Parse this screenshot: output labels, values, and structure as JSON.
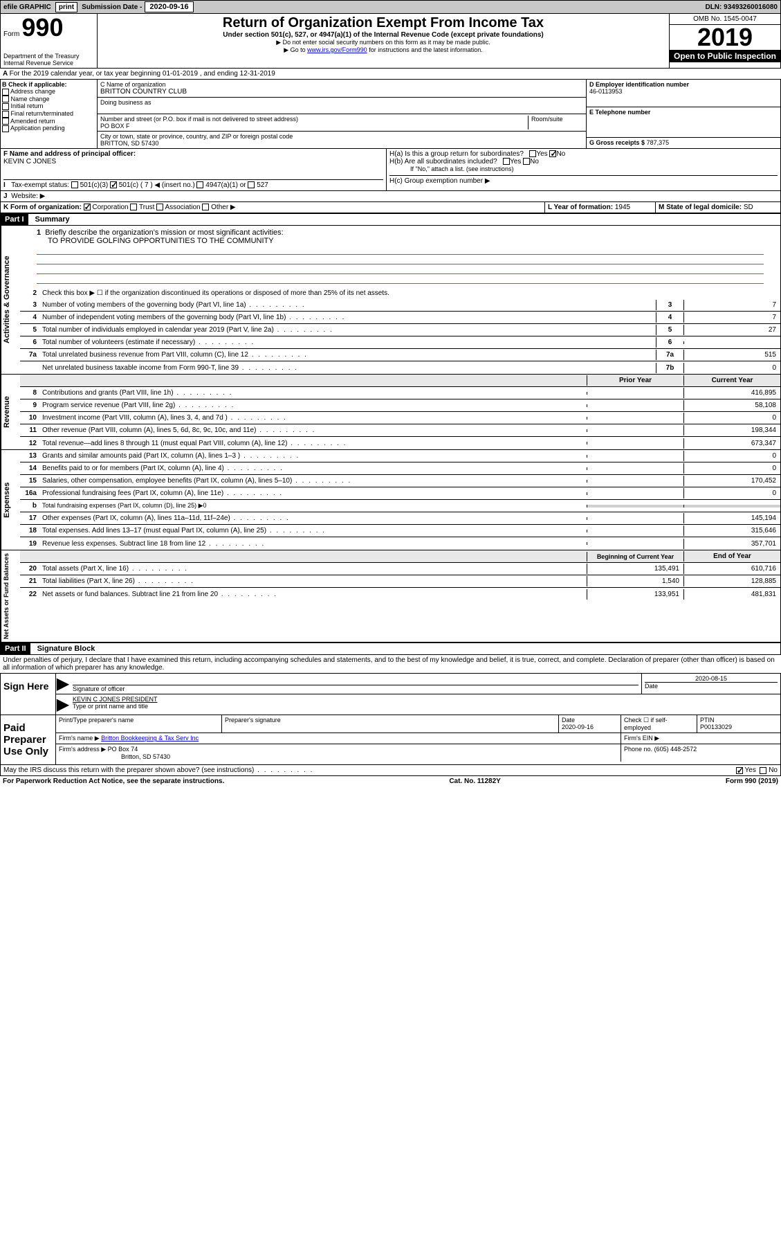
{
  "topbar": {
    "efile": "efile GRAPHIC",
    "print": "print",
    "sub_label": "Submission Date - ",
    "sub_date": "2020-09-16",
    "dln": "DLN: 93493260016080"
  },
  "header": {
    "form_prefix": "Form",
    "form_num": "990",
    "title": "Return of Organization Exempt From Income Tax",
    "subtitle": "Under section 501(c), 527, or 4947(a)(1) of the Internal Revenue Code (except private foundations)",
    "note1": "▶ Do not enter social security numbers on this form as it may be made public.",
    "note2_pre": "▶ Go to ",
    "note2_link": "www.irs.gov/Form990",
    "note2_post": " for instructions and the latest information.",
    "omb": "OMB No. 1545-0047",
    "year": "2019",
    "open": "Open to Public Inspection",
    "dept1": "Department of the Treasury",
    "dept2": "Internal Revenue Service"
  },
  "period": {
    "text": "For the 2019 calendar year, or tax year beginning 01-01-2019   , and ending 12-31-2019"
  },
  "boxB": {
    "title": "B Check if applicable:",
    "opts": [
      "Address change",
      "Name change",
      "Initial return",
      "Final return/terminated",
      "Amended return",
      "Application pending"
    ]
  },
  "boxC": {
    "label": "C Name of organization",
    "name": "BRITTON COUNTRY CLUB",
    "dba": "Doing business as",
    "addr_label": "Number and street (or P.O. box if mail is not delivered to street address)",
    "room": "Room/suite",
    "addr": "PO BOX F",
    "city_label": "City or town, state or province, country, and ZIP or foreign postal code",
    "city": "BRITTON, SD  57430"
  },
  "boxD": {
    "label": "D Employer identification number",
    "val": "46-0113953"
  },
  "boxE": {
    "label": "E Telephone number"
  },
  "boxG": {
    "label": "G Gross receipts $",
    "val": "787,375"
  },
  "boxF": {
    "label": "F  Name and address of principal officer:",
    "val": "KEVIN C JONES"
  },
  "boxH": {
    "a": "H(a)  Is this a group return for subordinates?",
    "b": "H(b)  Are all subordinates included?",
    "b_note": "If \"No,\" attach a list. (see instructions)",
    "c": "H(c)  Group exemption number ▶",
    "yes": "Yes",
    "no": "No"
  },
  "boxI": {
    "label": "Tax-exempt status:",
    "c3": "501(c)(3)",
    "c": "501(c) ( 7 ) ◀ (insert no.)",
    "a1": "4947(a)(1) or",
    "527": "527"
  },
  "boxJ": {
    "label": "Website: ▶"
  },
  "boxK": {
    "label": "K Form of organization:",
    "corp": "Corporation",
    "trust": "Trust",
    "assoc": "Association",
    "other": "Other ▶"
  },
  "boxL": {
    "label": "L Year of formation:",
    "val": "1945"
  },
  "boxM": {
    "label": "M State of legal domicile:",
    "val": "SD"
  },
  "part1": {
    "label": "Part I",
    "title": "Summary"
  },
  "summary": {
    "q1": "Briefly describe the organization's mission or most significant activities:",
    "q1_val": "TO PROVIDE GOLFING OPPORTUNITIES TO THE COMMUNITY",
    "q2": "Check this box ▶ ☐  if the organization discontinued its operations or disposed of more than 25% of its net assets.",
    "rows_gov": [
      {
        "n": "3",
        "t": "Number of voting members of the governing body (Part VI, line 1a)",
        "b": "3",
        "v": "7"
      },
      {
        "n": "4",
        "t": "Number of independent voting members of the governing body (Part VI, line 1b)",
        "b": "4",
        "v": "7"
      },
      {
        "n": "5",
        "t": "Total number of individuals employed in calendar year 2019 (Part V, line 2a)",
        "b": "5",
        "v": "27"
      },
      {
        "n": "6",
        "t": "Total number of volunteers (estimate if necessary)",
        "b": "6",
        "v": ""
      },
      {
        "n": "7a",
        "t": "Total unrelated business revenue from Part VIII, column (C), line 12",
        "b": "7a",
        "v": "515"
      },
      {
        "n": "",
        "t": "Net unrelated business taxable income from Form 990-T, line 39",
        "b": "7b",
        "v": "0"
      }
    ],
    "hdr_prior": "Prior Year",
    "hdr_current": "Current Year",
    "rows_rev": [
      {
        "n": "8",
        "t": "Contributions and grants (Part VIII, line 1h)",
        "p": "",
        "c": "416,895"
      },
      {
        "n": "9",
        "t": "Program service revenue (Part VIII, line 2g)",
        "p": "",
        "c": "58,108"
      },
      {
        "n": "10",
        "t": "Investment income (Part VIII, column (A), lines 3, 4, and 7d )",
        "p": "",
        "c": "0"
      },
      {
        "n": "11",
        "t": "Other revenue (Part VIII, column (A), lines 5, 6d, 8c, 9c, 10c, and 11e)",
        "p": "",
        "c": "198,344"
      },
      {
        "n": "12",
        "t": "Total revenue—add lines 8 through 11 (must equal Part VIII, column (A), line 12)",
        "p": "",
        "c": "673,347"
      }
    ],
    "rows_exp": [
      {
        "n": "13",
        "t": "Grants and similar amounts paid (Part IX, column (A), lines 1–3 )",
        "p": "",
        "c": "0"
      },
      {
        "n": "14",
        "t": "Benefits paid to or for members (Part IX, column (A), line 4)",
        "p": "",
        "c": "0"
      },
      {
        "n": "15",
        "t": "Salaries, other compensation, employee benefits (Part IX, column (A), lines 5–10)",
        "p": "",
        "c": "170,452"
      },
      {
        "n": "16a",
        "t": "Professional fundraising fees (Part IX, column (A), line 11e)",
        "p": "",
        "c": "0"
      },
      {
        "n": "b",
        "t": "Total fundraising expenses (Part IX, column (D), line 25) ▶0",
        "p": "shaded",
        "c": "shaded"
      },
      {
        "n": "17",
        "t": "Other expenses (Part IX, column (A), lines 11a–11d, 11f–24e)",
        "p": "",
        "c": "145,194"
      },
      {
        "n": "18",
        "t": "Total expenses. Add lines 13–17 (must equal Part IX, column (A), line 25)",
        "p": "",
        "c": "315,646"
      },
      {
        "n": "19",
        "t": "Revenue less expenses. Subtract line 18 from line 12",
        "p": "",
        "c": "357,701"
      }
    ],
    "hdr_begin": "Beginning of Current Year",
    "hdr_end": "End of Year",
    "rows_net": [
      {
        "n": "20",
        "t": "Total assets (Part X, line 16)",
        "p": "135,491",
        "c": "610,716"
      },
      {
        "n": "21",
        "t": "Total liabilities (Part X, line 26)",
        "p": "1,540",
        "c": "128,885"
      },
      {
        "n": "22",
        "t": "Net assets or fund balances. Subtract line 21 from line 20",
        "p": "133,951",
        "c": "481,831"
      }
    ],
    "vlabels": {
      "gov": "Activities & Governance",
      "rev": "Revenue",
      "exp": "Expenses",
      "net": "Net Assets or Fund Balances"
    }
  },
  "part2": {
    "label": "Part II",
    "title": "Signature Block"
  },
  "sig": {
    "perjury": "Under penalties of perjury, I declare that I have examined this return, including accompanying schedules and statements, and to the best of my knowledge and belief, it is true, correct, and complete. Declaration of preparer (other than officer) is based on all information of which preparer has any knowledge.",
    "sign_here": "Sign Here",
    "sig_officer": "Signature of officer",
    "date": "2020-08-15",
    "date_label": "Date",
    "name": "KEVIN C JONES PRESIDENT",
    "name_label": "Type or print name and title",
    "paid": "Paid Preparer Use Only",
    "prep_name_label": "Print/Type preparer's name",
    "prep_sig_label": "Preparer's signature",
    "prep_date": "2020-09-16",
    "check_self": "Check ☐ if self-employed",
    "ptin_label": "PTIN",
    "ptin": "P00133029",
    "firm_name_label": "Firm's name    ▶",
    "firm_name": "Britton Bookkeeping & Tax Serv Inc",
    "firm_ein": "Firm's EIN ▶",
    "firm_addr_label": "Firm's address ▶",
    "firm_addr": "PO Box 74",
    "firm_city": "Britton, SD  57430",
    "phone_label": "Phone no.",
    "phone": "(605) 448-2572",
    "discuss": "May the IRS discuss this return with the preparer shown above? (see instructions)",
    "yes": "Yes",
    "no": "No"
  },
  "footer": {
    "pra": "For Paperwork Reduction Act Notice, see the separate instructions.",
    "cat": "Cat. No. 11282Y",
    "form": "Form 990 (2019)"
  }
}
